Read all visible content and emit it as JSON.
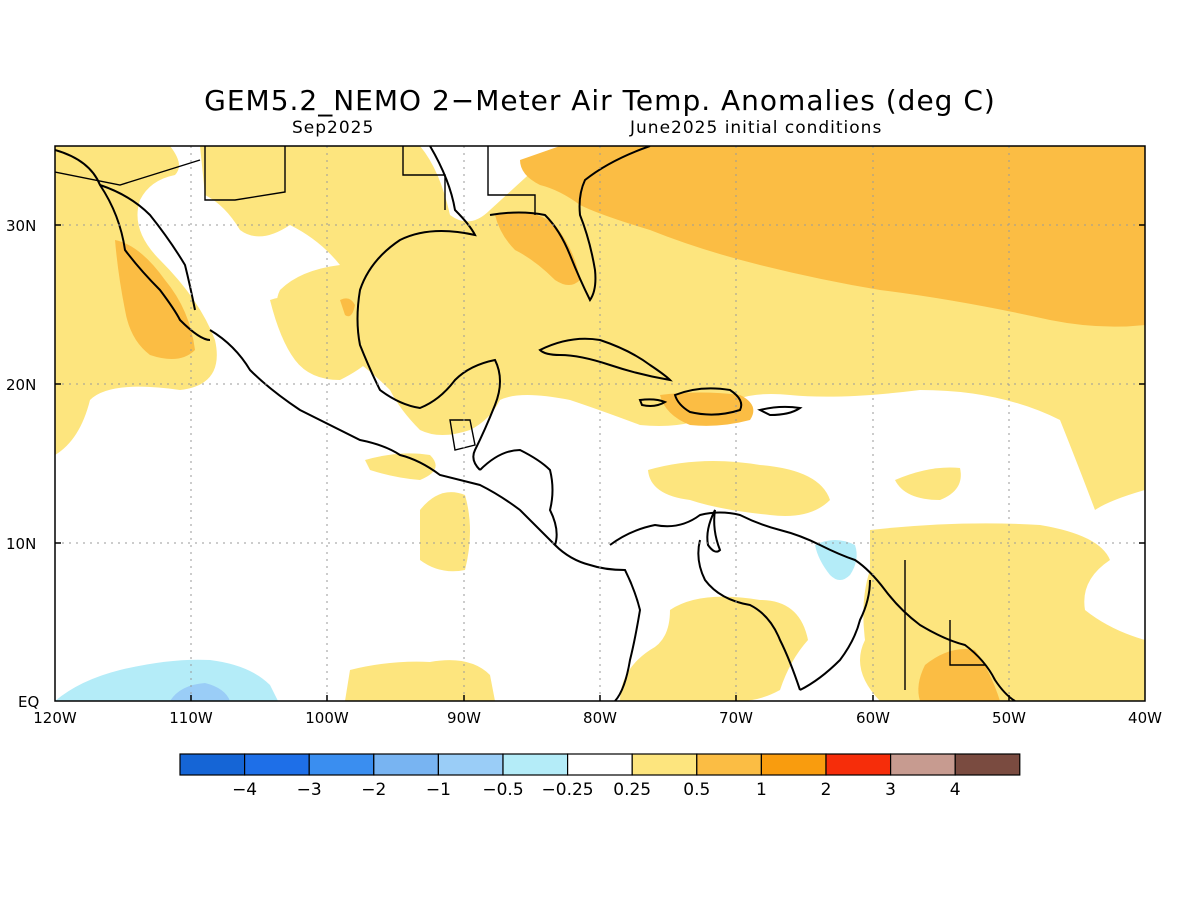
{
  "title": "GEM5.2_NEMO 2−Meter Air Temp. Anomalies (deg C)",
  "subtitle_left": "Sep2025",
  "subtitle_right": "June2025 initial conditions",
  "lat_labels": [
    "30N",
    "20N",
    "10N",
    "EQ"
  ],
  "lon_labels": [
    "120W",
    "110W",
    "100W",
    "90W",
    "80W",
    "70W",
    "60W",
    "50W",
    "40W"
  ],
  "colorbar": {
    "colors": [
      "#1565d6",
      "#1e6fe8",
      "#3a8ef0",
      "#78b4f2",
      "#9acdf7",
      "#b4ecf8",
      "#ffffff",
      "#fde57e",
      "#fbbd44",
      "#f99c0e",
      "#f62d0a",
      "#c79b90",
      "#7a4b40"
    ],
    "labels": [
      "−4",
      "−3",
      "−2",
      "−1",
      "−0.5",
      "−0.25",
      "0.25",
      "0.5",
      "1",
      "2",
      "3",
      "4"
    ]
  },
  "fill_colors": {
    "light_yellow": "#fde57e",
    "orange": "#fbbd44",
    "light_blue": "#b4ecf8",
    "blue": "#9acdf7"
  }
}
